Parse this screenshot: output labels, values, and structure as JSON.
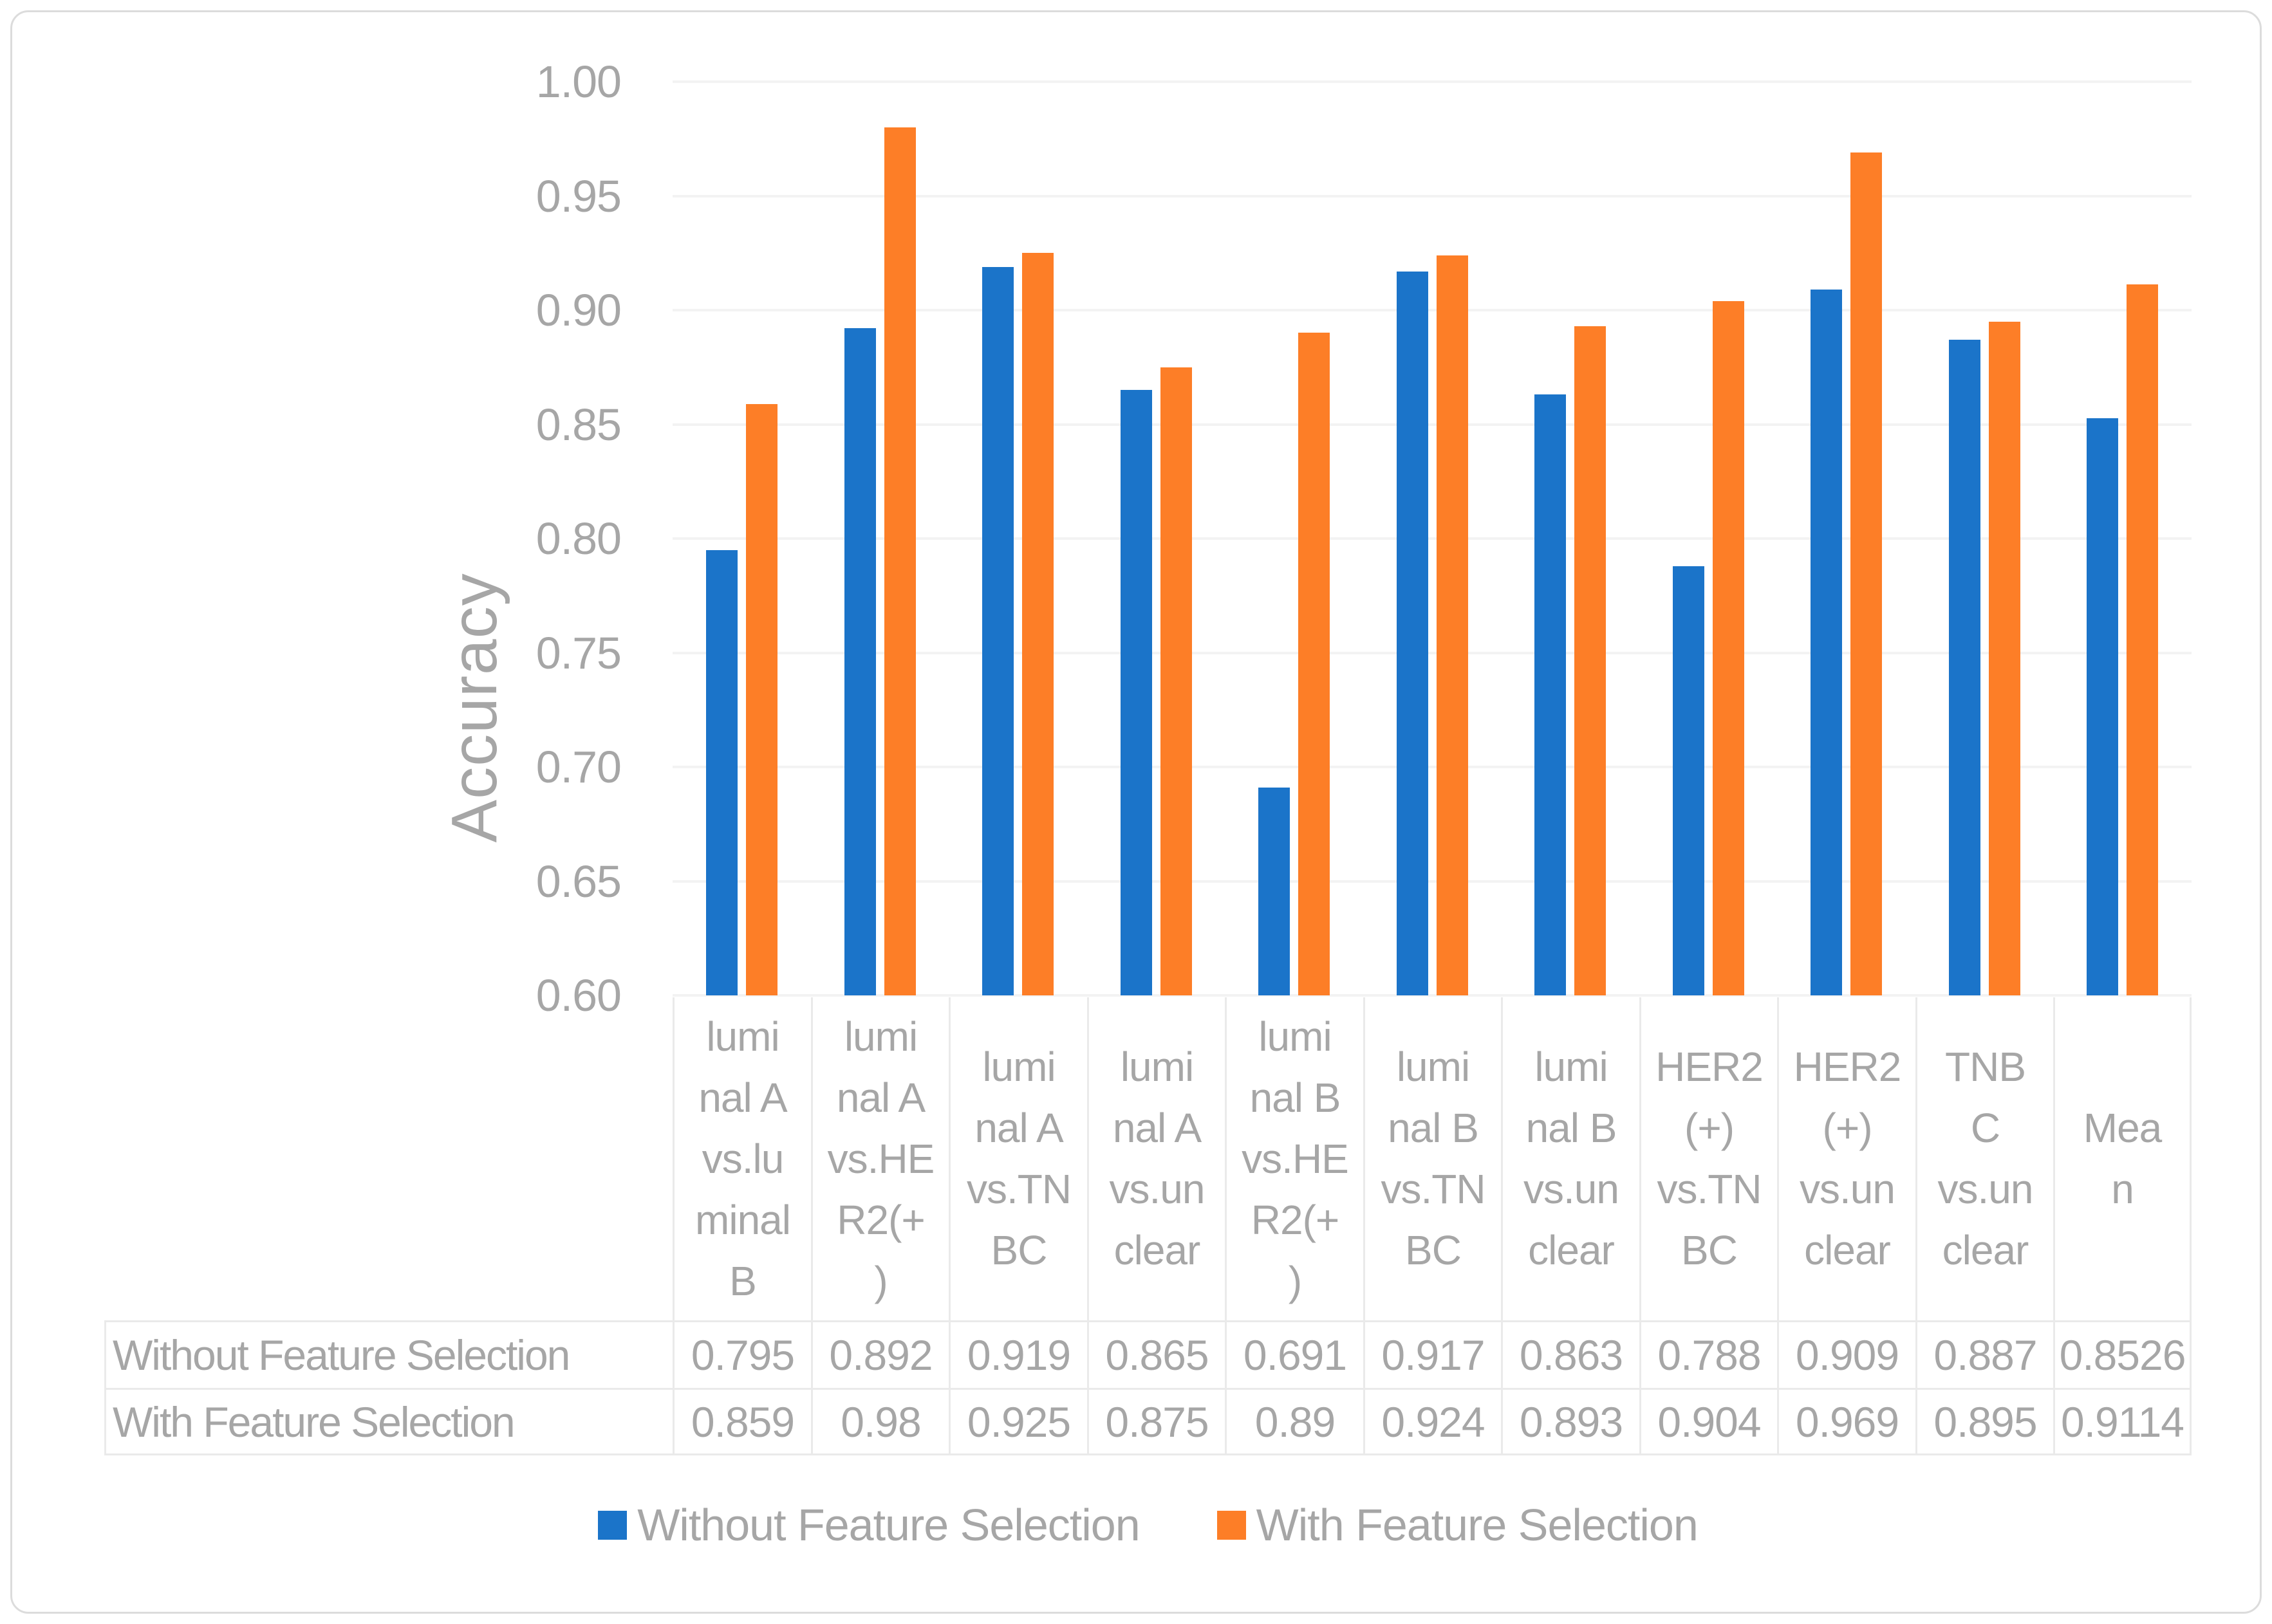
{
  "chart_data": {
    "type": "bar",
    "title": "",
    "ylabel": "Accuracy",
    "xlabel": "",
    "ylim": [
      0.6,
      1.0
    ],
    "ytick_step": 0.05,
    "ytick_labels": [
      "1.00",
      "0.95",
      "0.90",
      "0.85",
      "0.80",
      "0.75",
      "0.70",
      "0.65",
      "0.60"
    ],
    "grid": true,
    "legend_position": "bottom",
    "categories": [
      "luminal A vs.luminal B",
      "luminal A vs.HER2(+)",
      "luminal A vs.TNBC",
      "luminal A vs.unclear",
      "luminal B vs.HER2(+)",
      "luminal B vs.TNBC",
      "luminal B vs.unclear",
      "HER2 (+) vs.TNBC",
      "HER2 (+) vs.unclear",
      "TNBC vs.unclear",
      "Mean"
    ],
    "category_lines": [
      [
        "lumi",
        "nal A",
        "vs.lu",
        "minal",
        "B"
      ],
      [
        "lumi",
        "nal A",
        "vs.HE",
        "R2(+",
        ")"
      ],
      [
        "lumi",
        "nal A",
        "vs.TN",
        "BC"
      ],
      [
        "lumi",
        "nal A",
        "vs.un",
        "clear"
      ],
      [
        "lumi",
        "nal B",
        "vs.HE",
        "R2(+",
        ")"
      ],
      [
        "lumi",
        "nal B",
        "vs.TN",
        "BC"
      ],
      [
        "lumi",
        "nal B",
        "vs.un",
        "clear"
      ],
      [
        "HER2",
        "(+)",
        "vs.TN",
        "BC"
      ],
      [
        "HER2",
        "(+)",
        "vs.un",
        "clear"
      ],
      [
        "TNB",
        "C",
        "vs.un",
        "clear"
      ],
      [
        "Mea",
        "n"
      ]
    ],
    "series": [
      {
        "name": "Without Feature Selection",
        "color": "#1B74C9",
        "values": [
          0.795,
          0.892,
          0.919,
          0.865,
          0.691,
          0.917,
          0.863,
          0.788,
          0.909,
          0.887,
          0.8526
        ],
        "display": [
          "0.795",
          "0.892",
          "0.919",
          "0.865",
          "0.691",
          "0.917",
          "0.863",
          "0.788",
          "0.909",
          "0.887",
          "0.8526"
        ]
      },
      {
        "name": "With Feature Selection",
        "color": "#FD7E27",
        "values": [
          0.859,
          0.98,
          0.925,
          0.875,
          0.89,
          0.924,
          0.893,
          0.904,
          0.969,
          0.895,
          0.9114
        ],
        "display": [
          "0.859",
          "0.98",
          "0.925",
          "0.875",
          "0.89",
          "0.924",
          "0.893",
          "0.904",
          "0.969",
          "0.895",
          "0.9114"
        ]
      }
    ]
  },
  "colors": {
    "series_blue": "#1B74C9",
    "series_orange": "#FD7E27",
    "text_gray": "#A6A6A6",
    "gridline": "#F3F3F3",
    "cell_border": "#EAEAEA",
    "frame_border": "#DCDCDC"
  }
}
